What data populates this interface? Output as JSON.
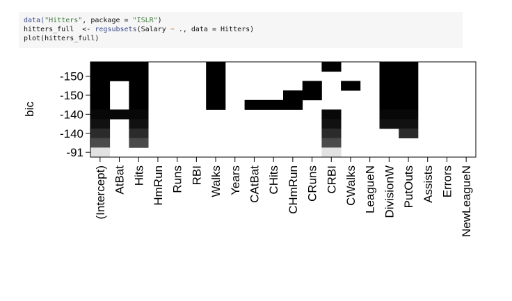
{
  "code": {
    "lines": [
      [
        {
          "t": "data(",
          "k": "fn"
        },
        {
          "t": "\"Hitters\"",
          "k": "str"
        },
        {
          "t": ", package = ",
          "k": "plain"
        },
        {
          "t": "\"ISLR\"",
          "k": "str"
        },
        {
          "t": ")",
          "k": "plain"
        }
      ],
      [
        {
          "t": "hitters_full  <- ",
          "k": "plain"
        },
        {
          "t": "regsubsets",
          "k": "fn"
        },
        {
          "t": "(Salary ",
          "k": "plain"
        },
        {
          "t": "~",
          "k": "op"
        },
        {
          "t": " ., data = Hitters)",
          "k": "plain"
        }
      ],
      [
        {
          "t": "plot(hitters_full)",
          "k": "plain"
        }
      ]
    ]
  },
  "chart_data": {
    "type": "heatmap",
    "title": "",
    "xlabel": "",
    "ylabel": "bic",
    "variables": [
      "(Intercept)",
      "AtBat",
      "Hits",
      "HmRun",
      "Runs",
      "RBI",
      "Walks",
      "Years",
      "CAtBat",
      "CHits",
      "CHmRun",
      "CRuns",
      "CRBI",
      "CWalks",
      "LeagueN",
      "DivisionW",
      "PutOuts",
      "Assists",
      "Errors",
      "NewLeagueN"
    ],
    "y_tick_labels": [
      "-150",
      "-150",
      "-140",
      "-140",
      "-91"
    ],
    "rows": [
      {
        "shade": "#000000",
        "included": [
          1,
          1,
          1,
          0,
          0,
          0,
          1,
          0,
          0,
          0,
          0,
          0,
          1,
          0,
          0,
          1,
          1,
          0,
          0,
          0
        ]
      },
      {
        "shade": "#000000",
        "included": [
          1,
          1,
          1,
          0,
          0,
          0,
          1,
          0,
          0,
          0,
          0,
          0,
          0,
          0,
          0,
          1,
          1,
          0,
          0,
          0
        ]
      },
      {
        "shade": "#000000",
        "included": [
          1,
          0,
          1,
          0,
          0,
          0,
          1,
          0,
          0,
          0,
          0,
          1,
          0,
          1,
          0,
          1,
          1,
          0,
          0,
          0
        ]
      },
      {
        "shade": "#000000",
        "included": [
          1,
          0,
          1,
          0,
          0,
          0,
          1,
          0,
          0,
          0,
          1,
          1,
          0,
          0,
          0,
          1,
          1,
          0,
          0,
          0
        ]
      },
      {
        "shade": "#000000",
        "included": [
          1,
          0,
          1,
          0,
          0,
          0,
          1,
          0,
          1,
          1,
          1,
          0,
          0,
          0,
          0,
          1,
          1,
          0,
          0,
          0
        ]
      },
      {
        "shade": "#080808",
        "included": [
          1,
          1,
          1,
          0,
          0,
          0,
          0,
          0,
          0,
          0,
          0,
          0,
          1,
          0,
          0,
          1,
          1,
          0,
          0,
          0
        ]
      },
      {
        "shade": "#111111",
        "included": [
          1,
          0,
          1,
          0,
          0,
          0,
          0,
          0,
          0,
          0,
          0,
          0,
          1,
          0,
          0,
          1,
          1,
          0,
          0,
          0
        ]
      },
      {
        "shade": "#2b2b2b",
        "included": [
          1,
          0,
          1,
          0,
          0,
          0,
          0,
          0,
          0,
          0,
          0,
          0,
          1,
          0,
          0,
          0,
          1,
          0,
          0,
          0
        ]
      },
      {
        "shade": "#4a4a4a",
        "included": [
          1,
          0,
          1,
          0,
          0,
          0,
          0,
          0,
          0,
          0,
          0,
          0,
          1,
          0,
          0,
          0,
          0,
          0,
          0,
          0
        ]
      },
      {
        "shade": "#e2e2e2",
        "included": [
          1,
          0,
          0,
          0,
          0,
          0,
          0,
          0,
          0,
          0,
          0,
          0,
          1,
          0,
          0,
          0,
          0,
          0,
          0,
          0
        ]
      }
    ]
  }
}
